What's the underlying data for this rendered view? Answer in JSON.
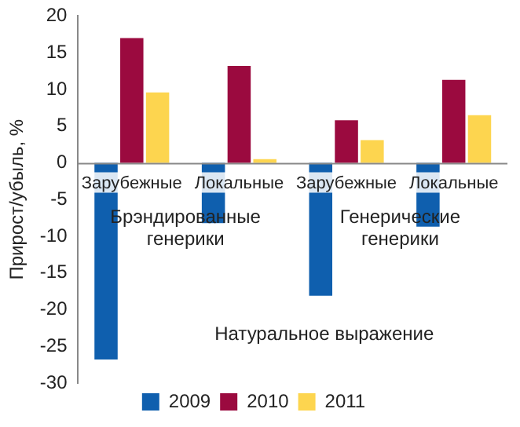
{
  "chart_data": {
    "type": "bar",
    "ylabel": "Прирост/убыль, %",
    "categories": [
      "Зарубежные",
      "Локальные",
      "Зарубежные",
      "Локальные"
    ],
    "series": [
      {
        "name": "2009",
        "color": "#0f5fae",
        "values": [
          -26.8,
          -8.2,
          -18.1,
          -8.7
        ]
      },
      {
        "name": "2010",
        "color": "#9b0a3f",
        "values": [
          17,
          13.2,
          5.8,
          11.3
        ]
      },
      {
        "name": "2011",
        "color": "#fdd54f",
        "values": [
          9.6,
          0.5,
          3.1,
          6.5
        ]
      }
    ],
    "ylim": [
      -30,
      20
    ],
    "yticks": [
      -30,
      -25,
      -20,
      -15,
      -10,
      -5,
      0,
      5,
      10,
      15,
      20
    ],
    "annotations": [
      "Брэндированные генерики",
      "Генерические генерики",
      "Натуральное выражение"
    ],
    "grid": false,
    "legend": "bottom"
  }
}
